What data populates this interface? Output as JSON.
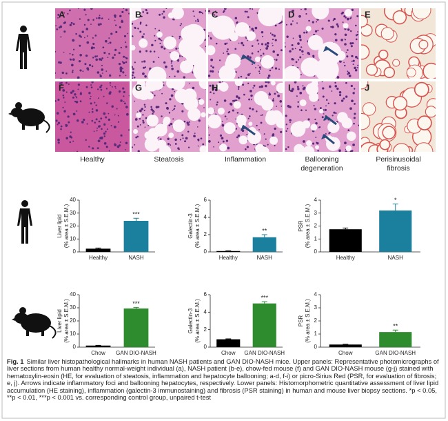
{
  "figure": {
    "panel_letters": [
      "A",
      "B",
      "C",
      "D",
      "E",
      "F",
      "G",
      "H",
      "I",
      "J"
    ],
    "column_labels": [
      "Healthy",
      "Steatosis",
      "Inflammation",
      "Ballooning degeneration",
      "Perisinusoidal fibrosis"
    ]
  },
  "chart_data": [
    {
      "type": "bar",
      "ylabel": [
        "Liver lipid",
        "(% area ± S.E.M.)"
      ],
      "categories": [
        "Healthy",
        "NASH"
      ],
      "values": [
        2.5,
        24
      ],
      "errors": [
        0.5,
        2
      ],
      "colors": [
        "#000000",
        "#1b7f9e"
      ],
      "ylim": [
        0,
        40
      ],
      "yticks": [
        0,
        10,
        20,
        30,
        40
      ],
      "significance": "***"
    },
    {
      "type": "bar",
      "ylabel": [
        "Galectin-3",
        "(% area ± S.E.M.)"
      ],
      "categories": [
        "Healthy",
        "NASH"
      ],
      "values": [
        0.1,
        1.7
      ],
      "errors": [
        0.03,
        0.3
      ],
      "colors": [
        "#000000",
        "#1b7f9e"
      ],
      "ylim": [
        0,
        6
      ],
      "yticks": [
        0,
        2,
        4,
        6
      ],
      "significance": "**"
    },
    {
      "type": "bar",
      "ylabel": [
        "PSR",
        "(% area ± S.E.M.)"
      ],
      "categories": [
        "Healthy",
        "NASH"
      ],
      "values": [
        1.75,
        3.2
      ],
      "errors": [
        0.1,
        0.5
      ],
      "colors": [
        "#000000",
        "#1b7f9e"
      ],
      "ylim": [
        0,
        4
      ],
      "yticks": [
        0,
        1,
        2,
        3,
        4
      ],
      "significance": "*"
    },
    {
      "type": "bar",
      "ylabel": [
        "Liver lipid",
        "(% area ± S.E.M.)"
      ],
      "categories": [
        "Chow",
        "GAN DIO-NASH"
      ],
      "values": [
        1.2,
        29.5
      ],
      "errors": [
        0.2,
        0.8
      ],
      "colors": [
        "#000000",
        "#2e8b2e"
      ],
      "ylim": [
        0,
        40
      ],
      "yticks": [
        0,
        10,
        20,
        30,
        40
      ],
      "significance": "***"
    },
    {
      "type": "bar",
      "ylabel": [
        "Galectin-3",
        "(% area ± S.E.M.)"
      ],
      "categories": [
        "Chow",
        "GAN DIO-NASH"
      ],
      "values": [
        0.9,
        5.0
      ],
      "errors": [
        0.05,
        0.2
      ],
      "colors": [
        "#000000",
        "#2e8b2e"
      ],
      "ylim": [
        0,
        6
      ],
      "yticks": [
        0,
        2,
        4,
        6
      ],
      "significance": "***"
    },
    {
      "type": "bar",
      "ylabel": [
        "PSR",
        "(% area ± S.E.M.)"
      ],
      "categories": [
        "Chow",
        "GAN DIO-NASH"
      ],
      "values": [
        0.2,
        1.15
      ],
      "errors": [
        0.03,
        0.15
      ],
      "colors": [
        "#000000",
        "#2e8b2e"
      ],
      "ylim": [
        0,
        4
      ],
      "yticks": [
        0,
        1,
        2,
        3,
        4
      ],
      "significance": "**"
    }
  ],
  "caption": {
    "label": "Fig. 1",
    "text": "Similar liver histopathological hallmarks in human NASH patients and GAN DIO-NASH mice. Upper panels: Representative photomicrographs of liver sections from human healthy normal-weight individual (a), NASH patient (b-e), chow-fed mouse (f) and GAN DIO-NASH mouse (g-j) stained with hematoxylin-eosin (HE, for evaluation of steatosis, inflammation and hepatocyte ballooning; a-d, f-i) or picro-Sirius Red (PSR, for evaluation of fibrosis; e, j). Arrows indicate inflammatory foci and ballooning hepatocytes, respectively. Lower panels: Histomorphometric quantitative assessment of liver lipid accumulation (HE staining), inflammation (galectin-3 immunostaining) and fibrosis (PSR staining) in human and mouse liver biopsy sections. *p < 0.05, **p < 0.01, ***p < 0.001 vs. corresponding control group, unpaired t-test"
  }
}
